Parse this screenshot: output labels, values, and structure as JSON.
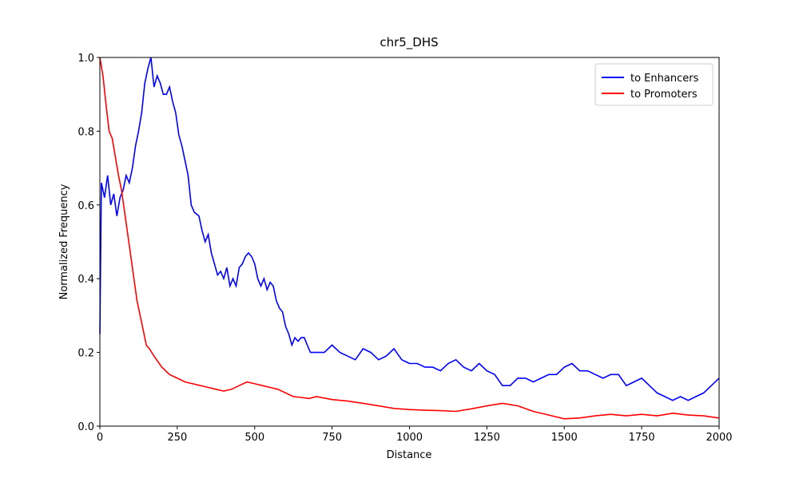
{
  "chart_data": {
    "type": "line",
    "title": "chr5_DHS",
    "x_label": "Distance",
    "y_label": "Normalized Frequency",
    "xlim": [
      0,
      2000
    ],
    "ylim": [
      0,
      1
    ],
    "xticks": [
      0,
      250,
      500,
      750,
      1000,
      1250,
      1500,
      1750,
      2000
    ],
    "yticks": [
      {
        "value": 0,
        "label": "0.0"
      },
      {
        "value": 0.2,
        "label": "0.2"
      },
      {
        "value": 0.4,
        "label": "0.4"
      },
      {
        "value": 0.6,
        "label": "0.6"
      },
      {
        "value": 0.8,
        "label": "0.8"
      },
      {
        "value": 1,
        "label": "1.0"
      }
    ],
    "legend": "upper right",
    "grid": false,
    "series": [
      {
        "name": "to Enhancers",
        "color": "#0000ff",
        "x": [
          0,
          5,
          15,
          25,
          35,
          45,
          55,
          65,
          75,
          85,
          95,
          105,
          115,
          125,
          135,
          145,
          155,
          165,
          175,
          185,
          195,
          205,
          215,
          225,
          235,
          245,
          255,
          265,
          275,
          285,
          295,
          305,
          320,
          330,
          340,
          350,
          360,
          370,
          380,
          390,
          400,
          410,
          420,
          430,
          440,
          450,
          460,
          470,
          480,
          490,
          500,
          510,
          520,
          530,
          540,
          550,
          560,
          570,
          580,
          590,
          600,
          610,
          620,
          630,
          640,
          650,
          660,
          670,
          680,
          700,
          725,
          750,
          775,
          800,
          825,
          850,
          875,
          900,
          925,
          950,
          975,
          1000,
          1025,
          1050,
          1075,
          1100,
          1125,
          1150,
          1175,
          1200,
          1225,
          1250,
          1275,
          1300,
          1325,
          1350,
          1375,
          1400,
          1425,
          1450,
          1475,
          1500,
          1525,
          1550,
          1575,
          1600,
          1625,
          1650,
          1675,
          1700,
          1725,
          1750,
          1775,
          1800,
          1825,
          1850,
          1875,
          1900,
          1925,
          1950,
          1975,
          2000
        ],
        "values": [
          0.25,
          0.66,
          0.62,
          0.68,
          0.6,
          0.63,
          0.57,
          0.62,
          0.64,
          0.68,
          0.66,
          0.7,
          0.76,
          0.8,
          0.85,
          0.93,
          0.97,
          1.0,
          0.92,
          0.95,
          0.93,
          0.9,
          0.9,
          0.92,
          0.88,
          0.85,
          0.79,
          0.76,
          0.72,
          0.68,
          0.6,
          0.58,
          0.57,
          0.53,
          0.5,
          0.52,
          0.47,
          0.44,
          0.41,
          0.42,
          0.4,
          0.43,
          0.38,
          0.4,
          0.38,
          0.43,
          0.44,
          0.46,
          0.47,
          0.46,
          0.44,
          0.4,
          0.38,
          0.4,
          0.37,
          0.39,
          0.38,
          0.34,
          0.32,
          0.31,
          0.27,
          0.25,
          0.22,
          0.24,
          0.23,
          0.24,
          0.24,
          0.22,
          0.2,
          0.2,
          0.2,
          0.22,
          0.2,
          0.19,
          0.18,
          0.21,
          0.2,
          0.18,
          0.19,
          0.21,
          0.18,
          0.17,
          0.17,
          0.16,
          0.16,
          0.15,
          0.17,
          0.18,
          0.16,
          0.15,
          0.17,
          0.15,
          0.14,
          0.11,
          0.11,
          0.13,
          0.13,
          0.12,
          0.13,
          0.14,
          0.14,
          0.16,
          0.17,
          0.15,
          0.15,
          0.14,
          0.13,
          0.14,
          0.14,
          0.11,
          0.12,
          0.13,
          0.11,
          0.09,
          0.08,
          0.07,
          0.08,
          0.07,
          0.08,
          0.09,
          0.11,
          0.13
        ]
      },
      {
        "name": "to Promoters",
        "color": "#ff0000",
        "x": [
          0,
          10,
          20,
          30,
          40,
          50,
          60,
          70,
          80,
          90,
          100,
          110,
          120,
          130,
          140,
          150,
          160,
          175,
          200,
          225,
          250,
          275,
          300,
          325,
          350,
          375,
          400,
          425,
          450,
          475,
          500,
          525,
          550,
          575,
          600,
          625,
          650,
          675,
          700,
          750,
          800,
          850,
          900,
          950,
          1000,
          1050,
          1100,
          1150,
          1200,
          1250,
          1300,
          1350,
          1400,
          1450,
          1500,
          1550,
          1600,
          1650,
          1700,
          1750,
          1800,
          1850,
          1900,
          1950,
          2000
        ],
        "values": [
          1.0,
          0.95,
          0.87,
          0.8,
          0.78,
          0.73,
          0.68,
          0.64,
          0.58,
          0.52,
          0.46,
          0.4,
          0.34,
          0.3,
          0.26,
          0.22,
          0.21,
          0.19,
          0.16,
          0.14,
          0.13,
          0.12,
          0.115,
          0.11,
          0.105,
          0.1,
          0.095,
          0.1,
          0.11,
          0.12,
          0.115,
          0.11,
          0.105,
          0.1,
          0.09,
          0.08,
          0.078,
          0.075,
          0.08,
          0.072,
          0.068,
          0.062,
          0.055,
          0.048,
          0.045,
          0.043,
          0.042,
          0.04,
          0.047,
          0.055,
          0.062,
          0.055,
          0.04,
          0.03,
          0.02,
          0.022,
          0.028,
          0.032,
          0.028,
          0.032,
          0.028,
          0.035,
          0.03,
          0.028,
          0.022
        ]
      }
    ]
  }
}
